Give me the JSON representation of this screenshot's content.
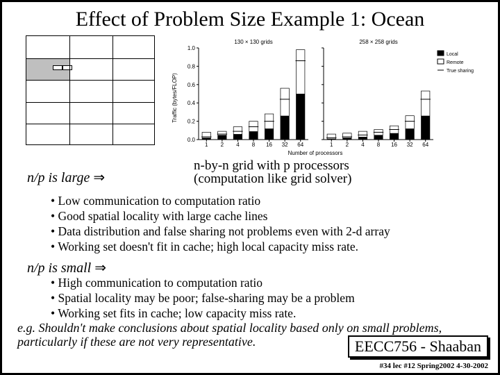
{
  "title": "Effect of Problem Size Example 1: Ocean",
  "grid_diagram": {
    "cols": 3,
    "rows": 5,
    "shaded_cell": {
      "row": 1,
      "col": 0
    },
    "tiny_boxes": 2,
    "border_color": "#000000",
    "shade_color": "#bfbfbf"
  },
  "chart": {
    "type": "bar",
    "panel_titles": [
      "130 × 130 grids",
      "258 × 258 grids"
    ],
    "ylabel": "Traffic (bytes/FLOP)",
    "xlabel": "Number of processors",
    "x_categories": [
      "1",
      "2",
      "4",
      "8",
      "16",
      "32",
      "64"
    ],
    "ylim": [
      0,
      1.0
    ],
    "ytick_step": 0.2,
    "legend": [
      {
        "label": "Local",
        "fill": "#000000"
      },
      {
        "label": "Remote",
        "fill": "#ffffff"
      },
      {
        "label": "True sharing",
        "type": "line"
      }
    ],
    "panel1": {
      "remote": [
        0.02,
        0.05,
        0.06,
        0.09,
        0.12,
        0.26,
        0.5
      ],
      "true_sharing": [
        0.03,
        0.06,
        0.09,
        0.14,
        0.2,
        0.44,
        0.86
      ],
      "local": [
        0.08,
        0.09,
        0.14,
        0.2,
        0.28,
        0.56,
        0.98
      ]
    },
    "panel2": {
      "remote": [
        0.01,
        0.02,
        0.03,
        0.05,
        0.07,
        0.12,
        0.26
      ],
      "true_sharing": [
        0.02,
        0.03,
        0.05,
        0.08,
        0.11,
        0.2,
        0.44
      ],
      "local": [
        0.06,
        0.07,
        0.09,
        0.11,
        0.15,
        0.26,
        0.53
      ]
    },
    "bar_width": 0.55,
    "axis_color": "#000000",
    "font_family": "sans-serif",
    "font_size": 8
  },
  "np_large_label": "n/p is  large",
  "np_large_arrow": "⇒",
  "np_desc_line1": "n-by-n grid with p processors",
  "np_desc_line2": "(computation   like grid solver)",
  "bullets_large": [
    "Low communication to computation ratio",
    "Good spatial locality with large cache lines",
    "Data distribution and false sharing not problems even with 2-d array",
    "Working set doesn't fit in cache; high local capacity miss rate."
  ],
  "np_small_label": "n/p is  small",
  "np_small_arrow": "⇒",
  "bullets_small": [
    "High communication to computation ratio",
    "Spatial locality may be poor;  false-sharing may be a problem",
    "Working set  fits in cache; low capacity miss rate."
  ],
  "footnote": "e.g. Shouldn't make conclusions about spatial locality based only on small problems, particularly if these are not very representative.",
  "course_box": "EECC756 - Shaaban",
  "footer": "#34  lec #12   Spring2002  4-30-2002",
  "colors": {
    "text": "#000000",
    "background": "#ffffff"
  }
}
